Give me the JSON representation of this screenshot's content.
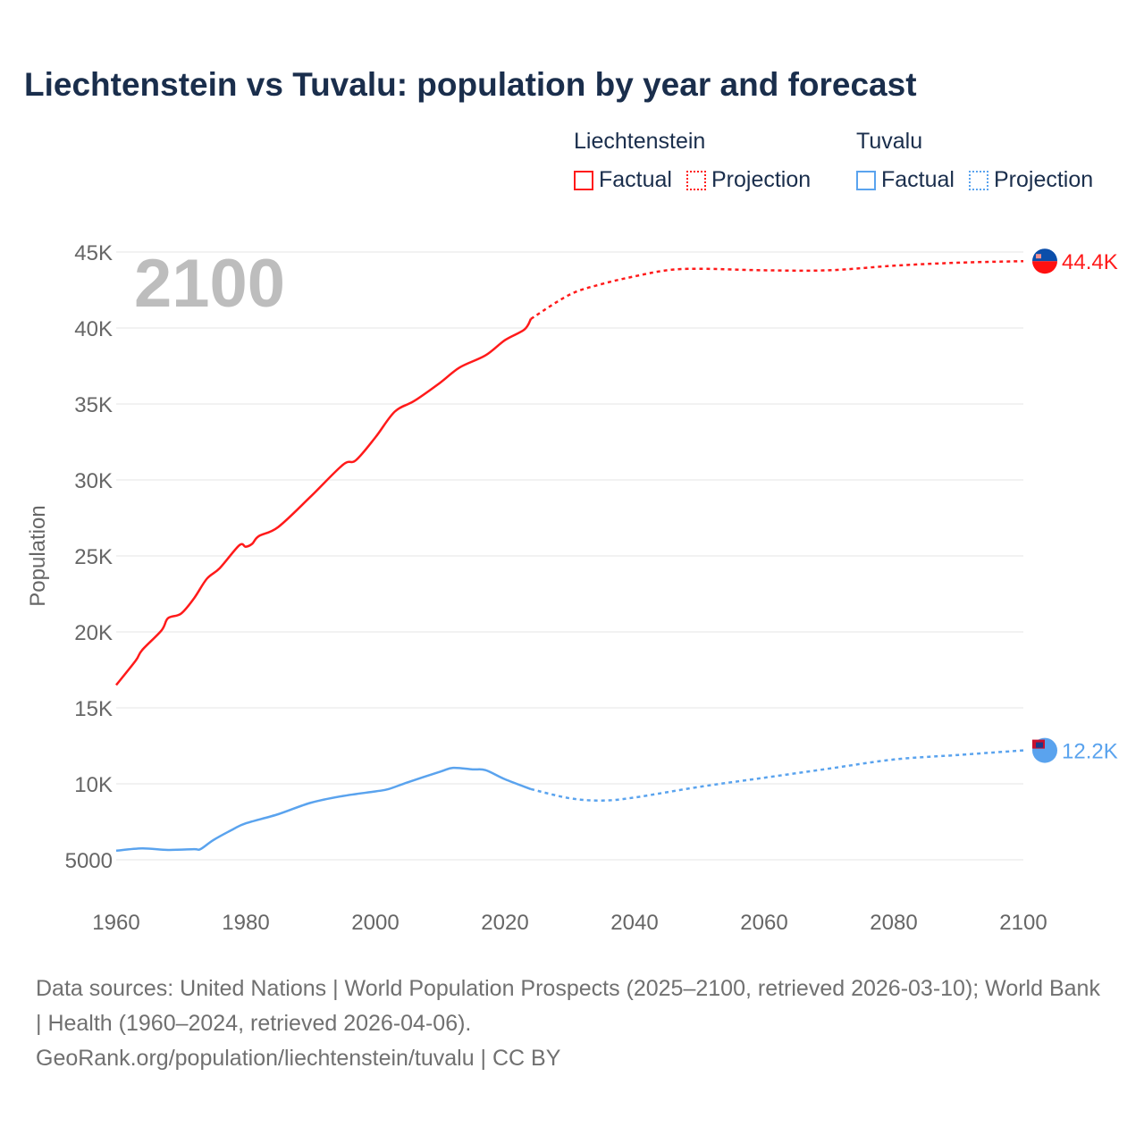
{
  "title": "Liechtenstein vs Tuvalu: population by year and forecast",
  "legend": {
    "groups": [
      {
        "name": "Liechtenstein",
        "factual": "Factual",
        "projection": "Projection",
        "color": "#ff1a1a"
      },
      {
        "name": "Tuvalu",
        "factual": "Factual",
        "projection": "Projection",
        "color": "#5aa3ee"
      }
    ]
  },
  "year_watermark": "2100",
  "footer": {
    "sources": "Data sources: United Nations | World Population Prospects (2025–2100, retrieved 2026-03-10); World Bank | Health (1960–2024, retrieved 2026-04-06).",
    "link": "GeoRank.org/population/liechtenstein/tuvalu | CC BY"
  },
  "chart_data": {
    "type": "line",
    "title": "Liechtenstein vs Tuvalu: population by year and forecast",
    "xlabel": "",
    "ylabel": "Population",
    "xlim": [
      1960,
      2100
    ],
    "ylim": [
      5000,
      45000
    ],
    "x_ticks": [
      1960,
      1980,
      2000,
      2020,
      2040,
      2060,
      2080,
      2100
    ],
    "x_tick_labels": [
      "1960",
      "1980",
      "2000",
      "2020",
      "2040",
      "2060",
      "2080",
      "2100"
    ],
    "y_ticks": [
      5000,
      10000,
      15000,
      20000,
      25000,
      30000,
      35000,
      40000,
      45000
    ],
    "y_tick_labels": [
      "5000",
      "10K",
      "15K",
      "20K",
      "25K",
      "30K",
      "35K",
      "40K",
      "45K"
    ],
    "grid": true,
    "legend_position": "top-right",
    "series": [
      {
        "name": "Liechtenstein",
        "kind": "Factual",
        "color": "#ff1a1a",
        "x": [
          1960,
          1963,
          1964,
          1967,
          1968,
          1970,
          1972,
          1974,
          1976,
          1979,
          1980,
          1981,
          1982,
          1985,
          1990,
          1995,
          1997,
          2000,
          2003,
          2006,
          2010,
          2013,
          2017,
          2020,
          2023,
          2024
        ],
        "y": [
          16500,
          18100,
          18800,
          20100,
          20900,
          21200,
          22200,
          23500,
          24200,
          25700,
          25600,
          25800,
          26300,
          26900,
          28900,
          31000,
          31300,
          32800,
          34500,
          35200,
          36400,
          37400,
          38200,
          39200,
          39900,
          40600
        ]
      },
      {
        "name": "Liechtenstein",
        "kind": "Projection",
        "color": "#ff1a1a",
        "x": [
          2024,
          2030,
          2035,
          2040,
          2045,
          2050,
          2060,
          2070,
          2080,
          2090,
          2100
        ],
        "y": [
          40600,
          42200,
          42900,
          43400,
          43800,
          43900,
          43800,
          43800,
          44100,
          44300,
          44400
        ]
      },
      {
        "name": "Tuvalu",
        "kind": "Factual",
        "color": "#5aa3ee",
        "x": [
          1960,
          1964,
          1968,
          1972,
          1973,
          1975,
          1978,
          1980,
          1985,
          1990,
          1995,
          2000,
          2002,
          2005,
          2010,
          2012,
          2015,
          2017,
          2020,
          2024
        ],
        "y": [
          5600,
          5750,
          5650,
          5700,
          5700,
          6300,
          7000,
          7400,
          8000,
          8750,
          9200,
          9500,
          9650,
          10100,
          10800,
          11050,
          10950,
          10900,
          10300,
          9650
        ]
      },
      {
        "name": "Tuvalu",
        "kind": "Projection",
        "color": "#5aa3ee",
        "x": [
          2024,
          2030,
          2035,
          2040,
          2050,
          2060,
          2070,
          2080,
          2090,
          2100
        ],
        "y": [
          9650,
          9050,
          8900,
          9100,
          9800,
          10400,
          11000,
          11600,
          11900,
          12200
        ]
      }
    ],
    "end_labels": [
      {
        "name": "Liechtenstein",
        "text": "44.4K",
        "value": 44400,
        "color": "#ff1a1a"
      },
      {
        "name": "Tuvalu",
        "text": "12.2K",
        "value": 12200,
        "color": "#5aa3ee"
      }
    ]
  }
}
